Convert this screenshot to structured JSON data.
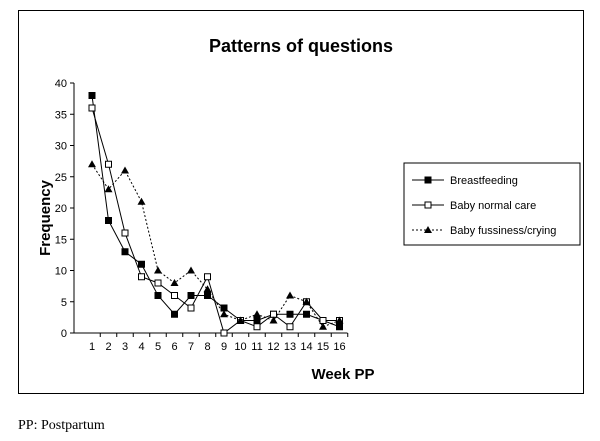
{
  "chart_data": {
    "type": "line",
    "title": "Patterns of questions",
    "xlabel": "Week PP",
    "ylabel": "Frequency",
    "x": [
      1,
      2,
      3,
      4,
      5,
      6,
      7,
      8,
      9,
      10,
      11,
      12,
      13,
      14,
      15,
      16
    ],
    "xlim": [
      1,
      16
    ],
    "ylim": [
      0,
      40
    ],
    "yticks": [
      0,
      5,
      10,
      15,
      20,
      25,
      30,
      35,
      40
    ],
    "grid": false,
    "legend_position": "right",
    "series": [
      {
        "name": "Breastfeeding",
        "marker": "filled-square",
        "line": "solid",
        "values": [
          38,
          18,
          13,
          11,
          6,
          3,
          6,
          6,
          4,
          2,
          2,
          3,
          3,
          3,
          2,
          1
        ]
      },
      {
        "name": "Baby normal care",
        "marker": "open-square",
        "line": "solid",
        "values": [
          36,
          27,
          16,
          9,
          8,
          6,
          4,
          9,
          0,
          2,
          1,
          3,
          1,
          5,
          2,
          2
        ]
      },
      {
        "name": "Baby fussiness/crying",
        "marker": "filled-triangle",
        "line": "dotted",
        "values": [
          27,
          23,
          26,
          21,
          10,
          8,
          10,
          7,
          3,
          2,
          3,
          2,
          6,
          5,
          1,
          2
        ]
      }
    ]
  },
  "caption": "PP: Postpartum"
}
